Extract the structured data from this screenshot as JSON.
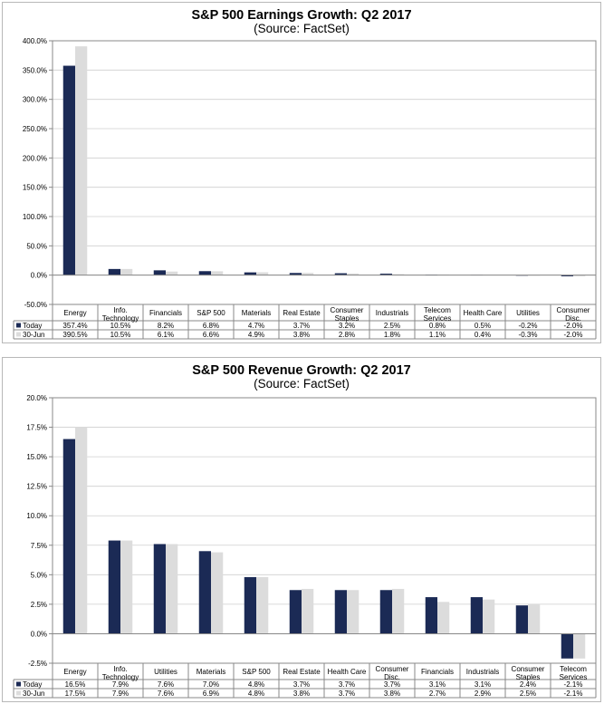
{
  "colors": {
    "today": "#1b2a55",
    "jun30": "#dcdcdc",
    "grid": "#cfcfcf",
    "axis": "#888888"
  },
  "chart_data": [
    {
      "type": "bar",
      "title": "S&P 500 Earnings Growth: Q2 2017",
      "subtitle": "(Source: FactSet)",
      "categories": [
        "Energy",
        "Info. Technology",
        "Financials",
        "S&P 500",
        "Materials",
        "Real Estate",
        "Consumer Staples",
        "Industrials",
        "Telecom Services",
        "Health Care",
        "Utilities",
        "Consumer Disc."
      ],
      "ylim": [
        -50,
        400
      ],
      "yticks": [
        "400.0%",
        "350.0%",
        "300.0%",
        "250.0%",
        "200.0%",
        "150.0%",
        "100.0%",
        "50.0%",
        "0.0%",
        "-50.0%"
      ],
      "series": [
        {
          "name": "Today",
          "values": [
            357.4,
            10.5,
            8.2,
            6.8,
            4.7,
            3.7,
            3.2,
            2.5,
            0.8,
            0.5,
            -0.2,
            -2.0
          ],
          "labels": [
            "357.4%",
            "10.5%",
            "8.2%",
            "6.8%",
            "4.7%",
            "3.7%",
            "3.2%",
            "2.5%",
            "0.8%",
            "0.5%",
            "-0.2%",
            "-2.0%"
          ]
        },
        {
          "name": "30-Jun",
          "values": [
            390.5,
            10.5,
            6.1,
            6.6,
            4.9,
            3.8,
            2.8,
            1.8,
            1.1,
            0.4,
            -0.3,
            -2.0
          ],
          "labels": [
            "390.5%",
            "10.5%",
            "6.1%",
            "6.6%",
            "4.9%",
            "3.8%",
            "2.8%",
            "1.8%",
            "1.1%",
            "0.4%",
            "-0.3%",
            "-2.0%"
          ]
        }
      ]
    },
    {
      "type": "bar",
      "title": "S&P 500 Revenue Growth: Q2 2017",
      "subtitle": "(Source: FactSet)",
      "categories": [
        "Energy",
        "Info. Technology",
        "Utilities",
        "Materials",
        "S&P 500",
        "Real Estate",
        "Health Care",
        "Consumer Disc.",
        "Financials",
        "Industrials",
        "Consumer Staples",
        "Telecom Services"
      ],
      "ylim": [
        -2.5,
        20
      ],
      "yticks": [
        "20.0%",
        "17.5%",
        "15.0%",
        "12.5%",
        "10.0%",
        "7.5%",
        "5.0%",
        "2.5%",
        "0.0%",
        "-2.5%"
      ],
      "series": [
        {
          "name": "Today",
          "values": [
            16.5,
            7.9,
            7.6,
            7.0,
            4.8,
            3.7,
            3.7,
            3.7,
            3.1,
            3.1,
            2.4,
            -2.1
          ],
          "labels": [
            "16.5%",
            "7.9%",
            "7.6%",
            "7.0%",
            "4.8%",
            "3.7%",
            "3.7%",
            "3.7%",
            "3.1%",
            "3.1%",
            "2.4%",
            "-2.1%"
          ]
        },
        {
          "name": "30-Jun",
          "values": [
            17.5,
            7.9,
            7.6,
            6.9,
            4.8,
            3.8,
            3.7,
            3.8,
            2.7,
            2.9,
            2.5,
            -2.1
          ],
          "labels": [
            "17.5%",
            "7.9%",
            "7.6%",
            "6.9%",
            "4.8%",
            "3.8%",
            "3.7%",
            "3.8%",
            "2.7%",
            "2.9%",
            "2.5%",
            "-2.1%"
          ]
        }
      ]
    }
  ]
}
